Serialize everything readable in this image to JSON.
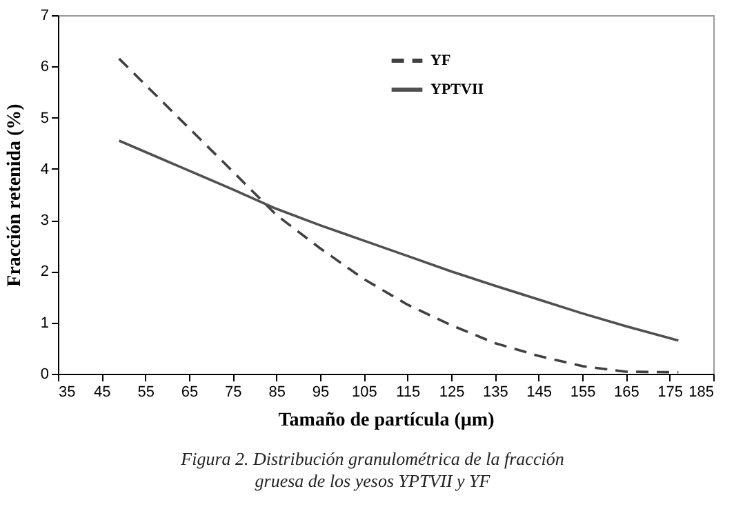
{
  "chart_data": {
    "type": "line",
    "xlabel": "Tamaño de partícula (µm)",
    "ylabel": "Fracción retenida (%)",
    "x": [
      49,
      75,
      85,
      95,
      105,
      115,
      125,
      135,
      145,
      155,
      165,
      177
    ],
    "series": [
      {
        "name": "YF",
        "color": "#404040",
        "line_style": "dashed",
        "values": [
          6.15,
          3.95,
          3.1,
          2.45,
          1.85,
          1.35,
          0.95,
          0.6,
          0.35,
          0.15,
          0.04,
          0.03
        ]
      },
      {
        "name": "YPTVII",
        "color": "#505050",
        "line_style": "solid",
        "values": [
          4.55,
          3.6,
          3.22,
          2.9,
          2.6,
          2.3,
          2.0,
          1.72,
          1.45,
          1.18,
          0.93,
          0.65
        ]
      }
    ],
    "xlim": [
      35,
      185
    ],
    "xticks": [
      35,
      45,
      55,
      65,
      75,
      85,
      95,
      105,
      115,
      125,
      135,
      145,
      155,
      165,
      175,
      185
    ],
    "ylim": [
      0,
      7
    ],
    "yticks": [
      0,
      1,
      2,
      3,
      4,
      5,
      6,
      7
    ],
    "grid": false,
    "legend": "top right",
    "marker": "none",
    "annotations": [
      "Figura 2. Distribución granulométrica de la fracción gruesa de los yesos YPTVII y YF"
    ]
  }
}
